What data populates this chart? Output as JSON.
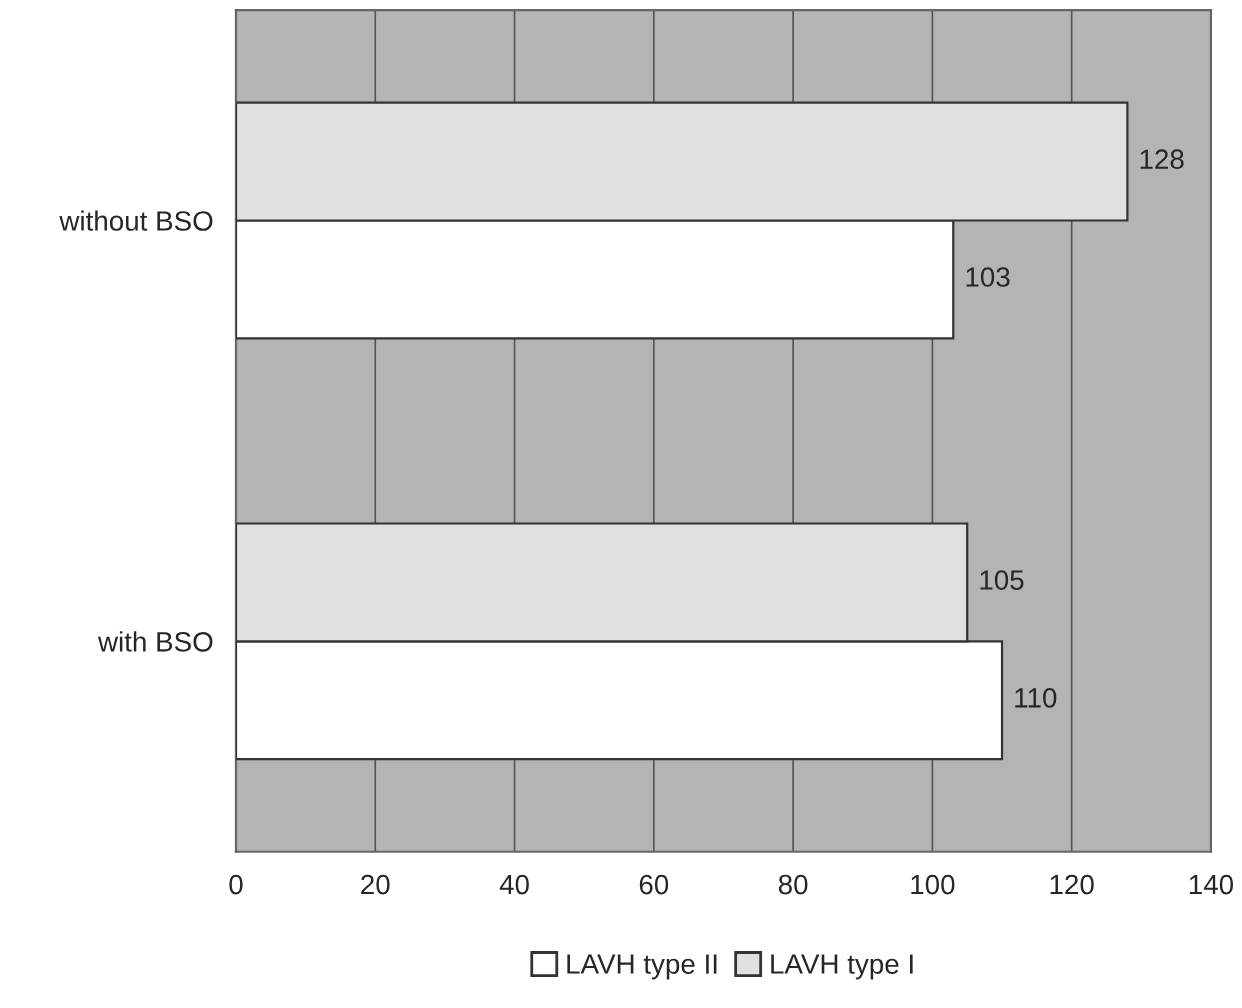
{
  "chart_data": {
    "type": "bar",
    "orientation": "horizontal",
    "categories": [
      "without BSO",
      "with BSO"
    ],
    "series": [
      {
        "name": "LAVH type II",
        "color": "#ffffff",
        "values": [
          103,
          110
        ]
      },
      {
        "name": "LAVH type I",
        "color": "#e0e0e0",
        "values": [
          128,
          105
        ]
      }
    ],
    "xlim": [
      0,
      140
    ],
    "xticks": [
      0,
      20,
      40,
      60,
      80,
      100,
      120,
      140
    ],
    "grid": "x",
    "legend": "bottom",
    "data_labels": true
  }
}
